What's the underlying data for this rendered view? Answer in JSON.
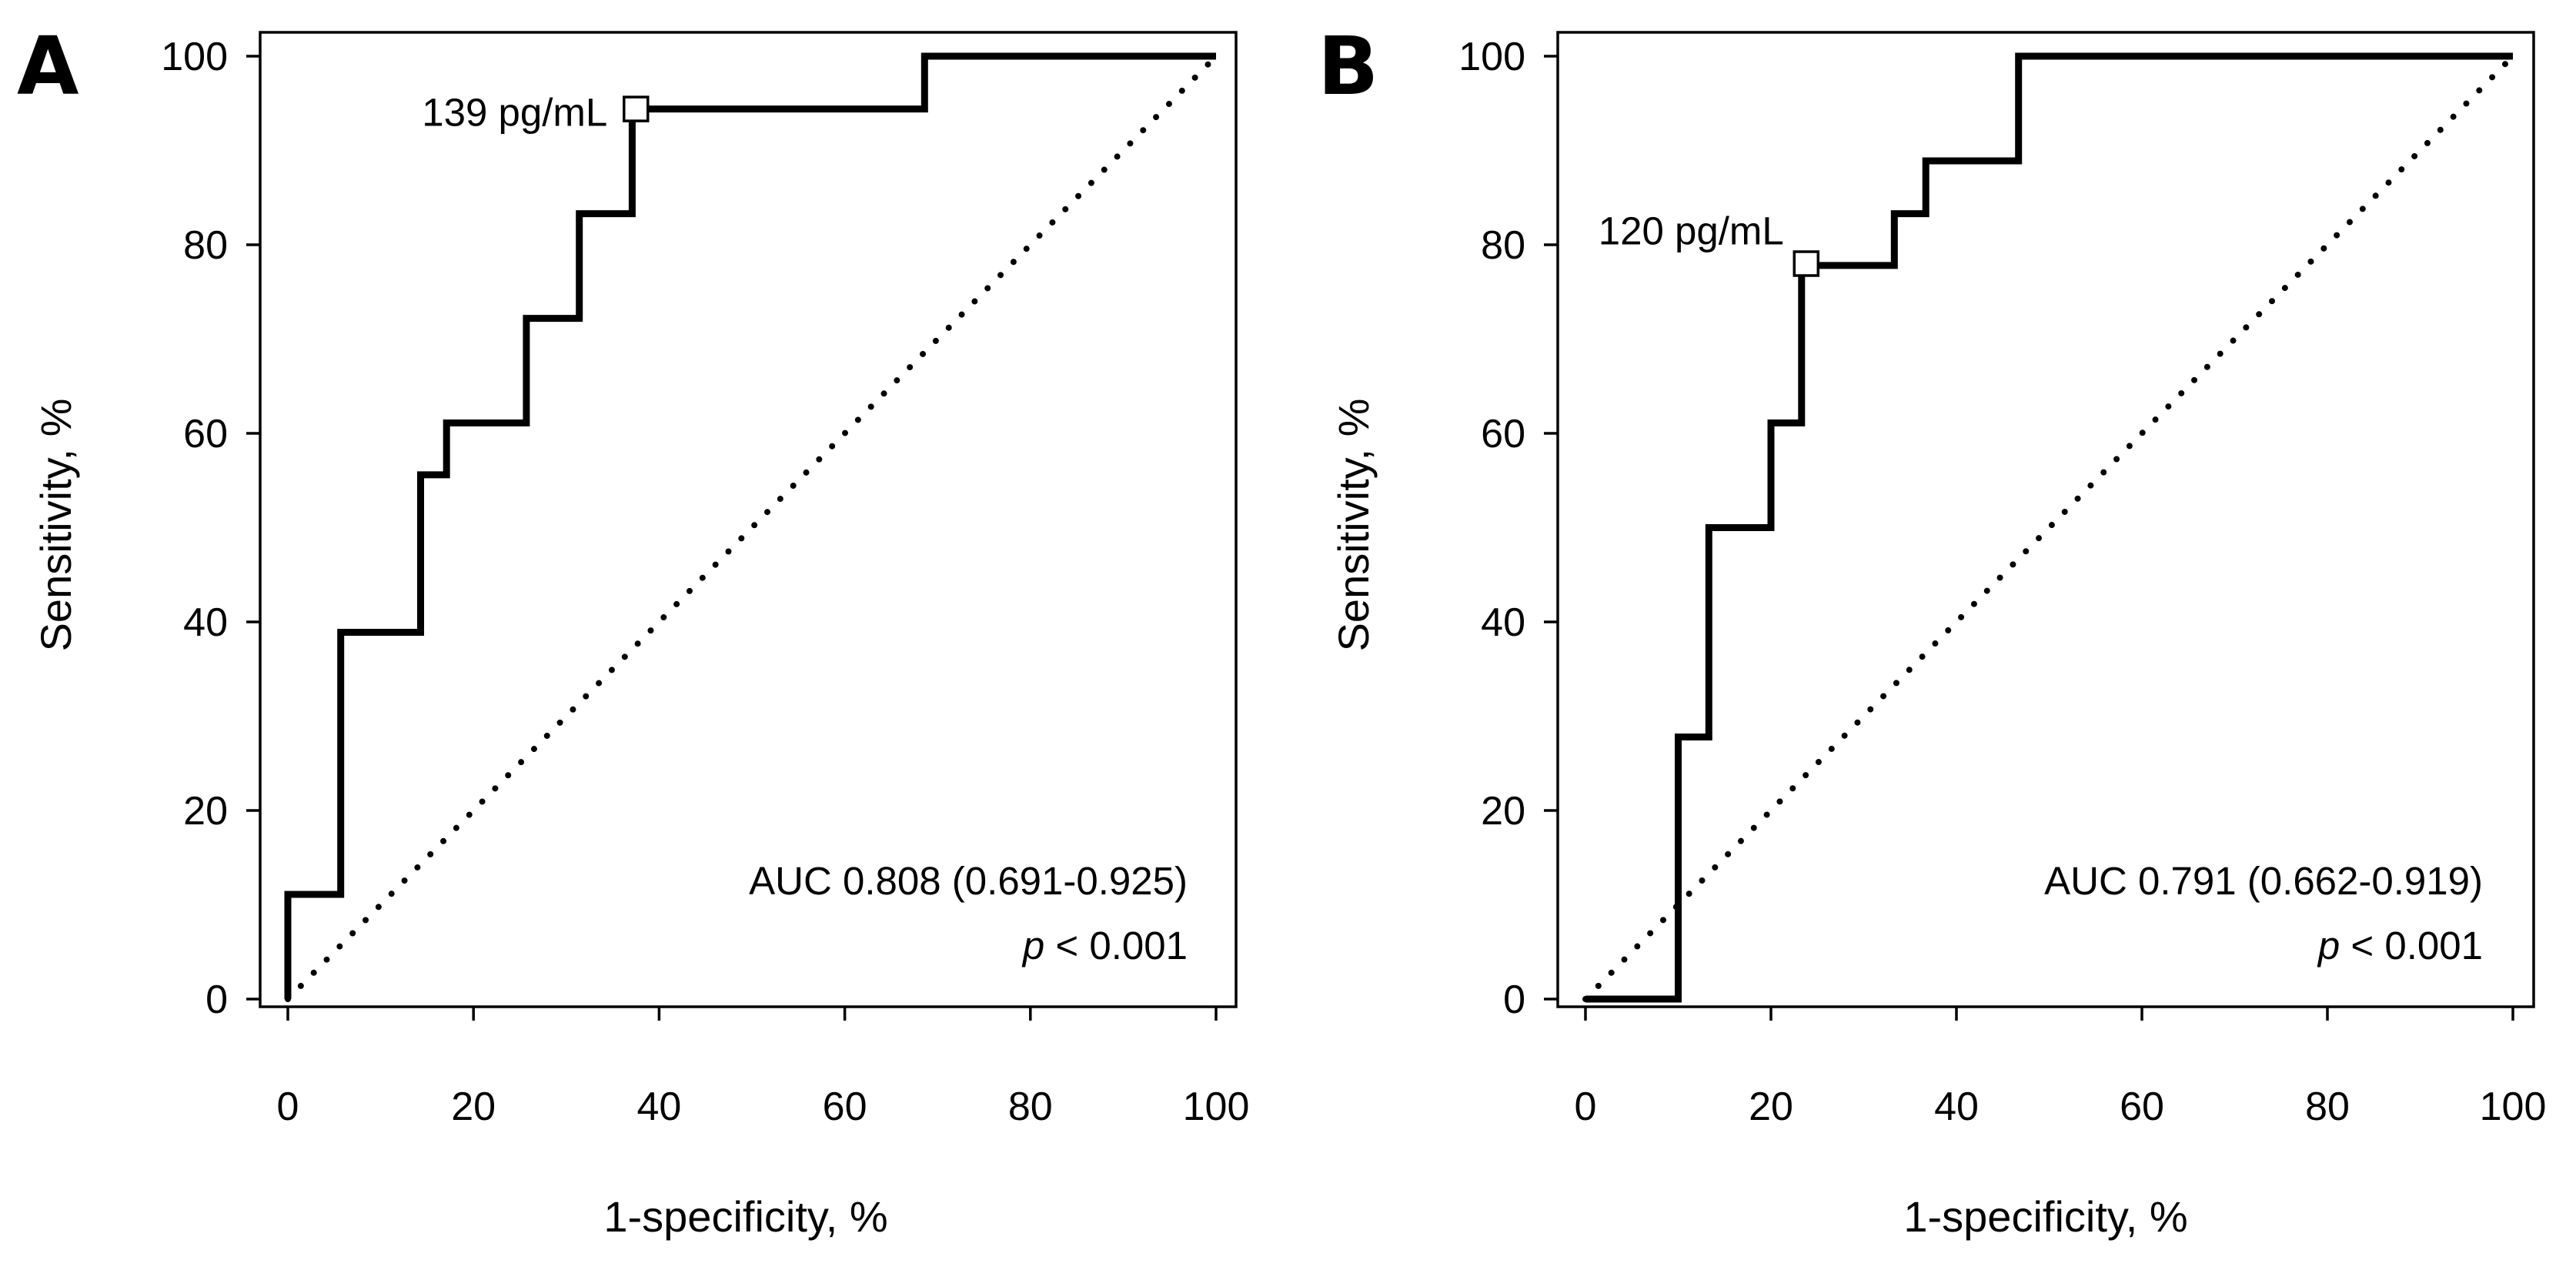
{
  "chart_data": [
    {
      "panel": "A",
      "type": "line",
      "xlabel": "1-specificity, %",
      "ylabel": "Sensitivity, %",
      "xlim": [
        0,
        100
      ],
      "ylim": [
        0,
        100
      ],
      "xticks": [
        0,
        20,
        40,
        60,
        80,
        100
      ],
      "yticks": [
        0,
        20,
        40,
        60,
        80,
        100
      ],
      "series": [
        {
          "name": "ROC curve",
          "style": "solid-step",
          "x": [
            0,
            0,
            5.7,
            5.7,
            14.3,
            14.3,
            17.1,
            17.1,
            25.7,
            25.7,
            31.4,
            31.4,
            37.1,
            37.1,
            68.6,
            68.6,
            100
          ],
          "y": [
            0,
            11.1,
            11.1,
            38.9,
            38.9,
            55.6,
            55.6,
            61.1,
            61.1,
            72.2,
            72.2,
            83.3,
            83.3,
            94.4,
            94.4,
            100,
            100
          ]
        },
        {
          "name": "Reference line",
          "style": "dotted",
          "x": [
            0,
            100
          ],
          "y": [
            0,
            100
          ]
        }
      ],
      "cutoff": {
        "label": "139 pg/mL",
        "x": 37.5,
        "y": 94.4
      },
      "auc_text": "AUC 0.808 (0.691-0.925)",
      "p_symbol": "p",
      "p_rest": " < 0.001"
    },
    {
      "panel": "B",
      "type": "line",
      "xlabel": "1-specificity, %",
      "ylabel": "Sensitivity, %",
      "xlim": [
        0,
        100
      ],
      "ylim": [
        0,
        100
      ],
      "xticks": [
        0,
        20,
        40,
        60,
        80,
        100
      ],
      "yticks": [
        0,
        20,
        40,
        60,
        80,
        100
      ],
      "series": [
        {
          "name": "ROC curve",
          "style": "solid-step",
          "x": [
            0,
            10,
            10,
            13.3,
            13.3,
            20,
            20,
            23.3,
            23.3,
            33.3,
            33.3,
            36.7,
            36.7,
            46.7,
            46.7,
            100
          ],
          "y": [
            0,
            0,
            27.8,
            27.8,
            50,
            50,
            61.1,
            61.1,
            77.8,
            77.8,
            83.3,
            83.3,
            88.9,
            88.9,
            100,
            100
          ]
        },
        {
          "name": "Reference line",
          "style": "dotted",
          "x": [
            0,
            100
          ],
          "y": [
            0,
            100
          ]
        }
      ],
      "cutoff": {
        "label": "120 pg/mL",
        "x": 23.8,
        "y": 78.0
      },
      "auc_text": "AUC 0.791 (0.662-0.919)",
      "p_symbol": "p",
      "p_rest": " < 0.001"
    }
  ]
}
